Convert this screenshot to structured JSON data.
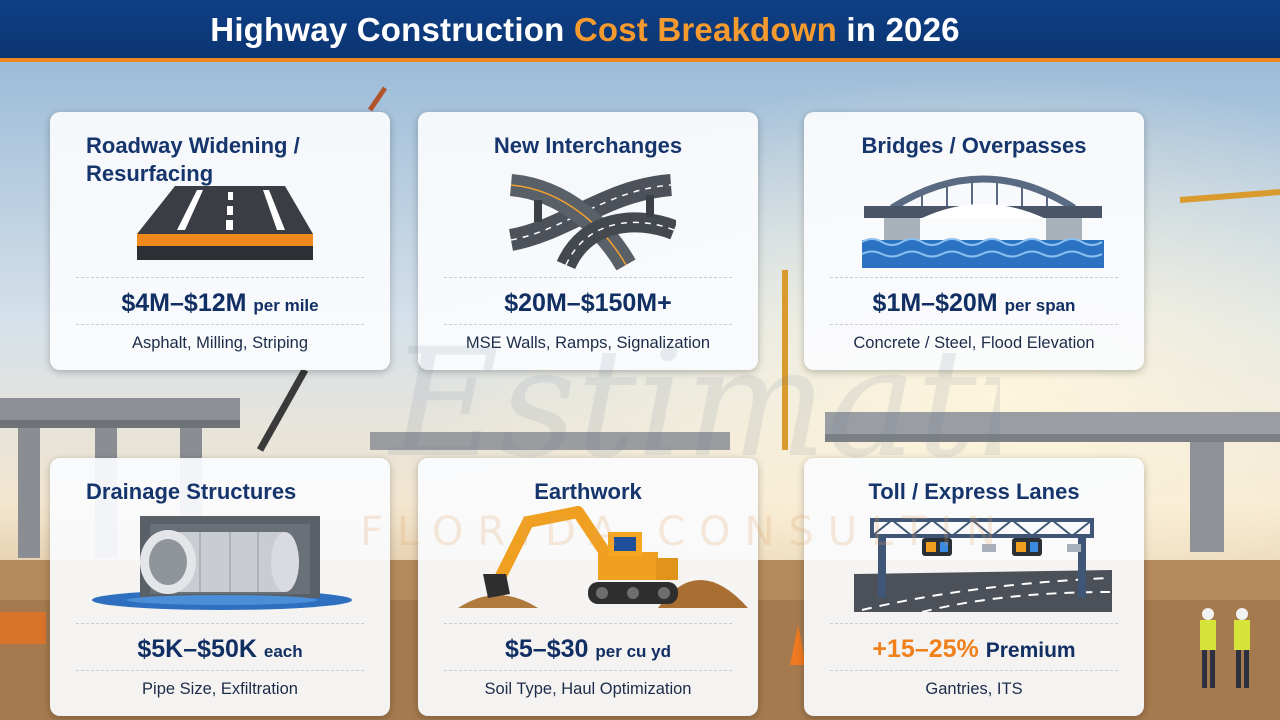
{
  "header": {
    "title_part1": "Highway Construction ",
    "title_highlight": "Cost Breakdown",
    "title_part2": " in 2026"
  },
  "watermark": {
    "line1": "Estimating",
    "line2": "FLORIDA CONSULTING"
  },
  "cards": [
    {
      "title": "Roadway Widening / Resurfacing",
      "icon": "road-lanes-icon",
      "cost": "$4M–$12M",
      "unit": "per mile",
      "detail": "Asphalt, Milling, Striping"
    },
    {
      "title": "New Interchanges",
      "icon": "interchange-ramps-icon",
      "cost": "$20M–$150M+",
      "unit": "",
      "detail": "MSE Walls, Ramps, Signalization"
    },
    {
      "title": "Bridges / Overpasses",
      "icon": "arch-bridge-icon",
      "cost": "$1M–$20M",
      "unit": "per span",
      "detail": "Concrete / Steel, Flood Elevation"
    },
    {
      "title": "Drainage Structures",
      "icon": "culvert-pipe-icon",
      "cost": "$5K–$50K",
      "unit": "each",
      "detail": "Pipe Size, Exfiltration"
    },
    {
      "title": "Earthwork",
      "icon": "excavator-icon",
      "cost": "$5–$30",
      "unit": "per cu yd",
      "detail": "Soil Type, Haul Optimization"
    },
    {
      "title": "Toll / Express Lanes",
      "icon": "toll-gantry-icon",
      "cost": "+15–25%",
      "unit": "Premium",
      "detail": "Gantries, ITS"
    }
  ],
  "colors": {
    "header_blue": "#0f3f86",
    "accent_orange": "#f0871f",
    "card_title": "#16356d"
  }
}
